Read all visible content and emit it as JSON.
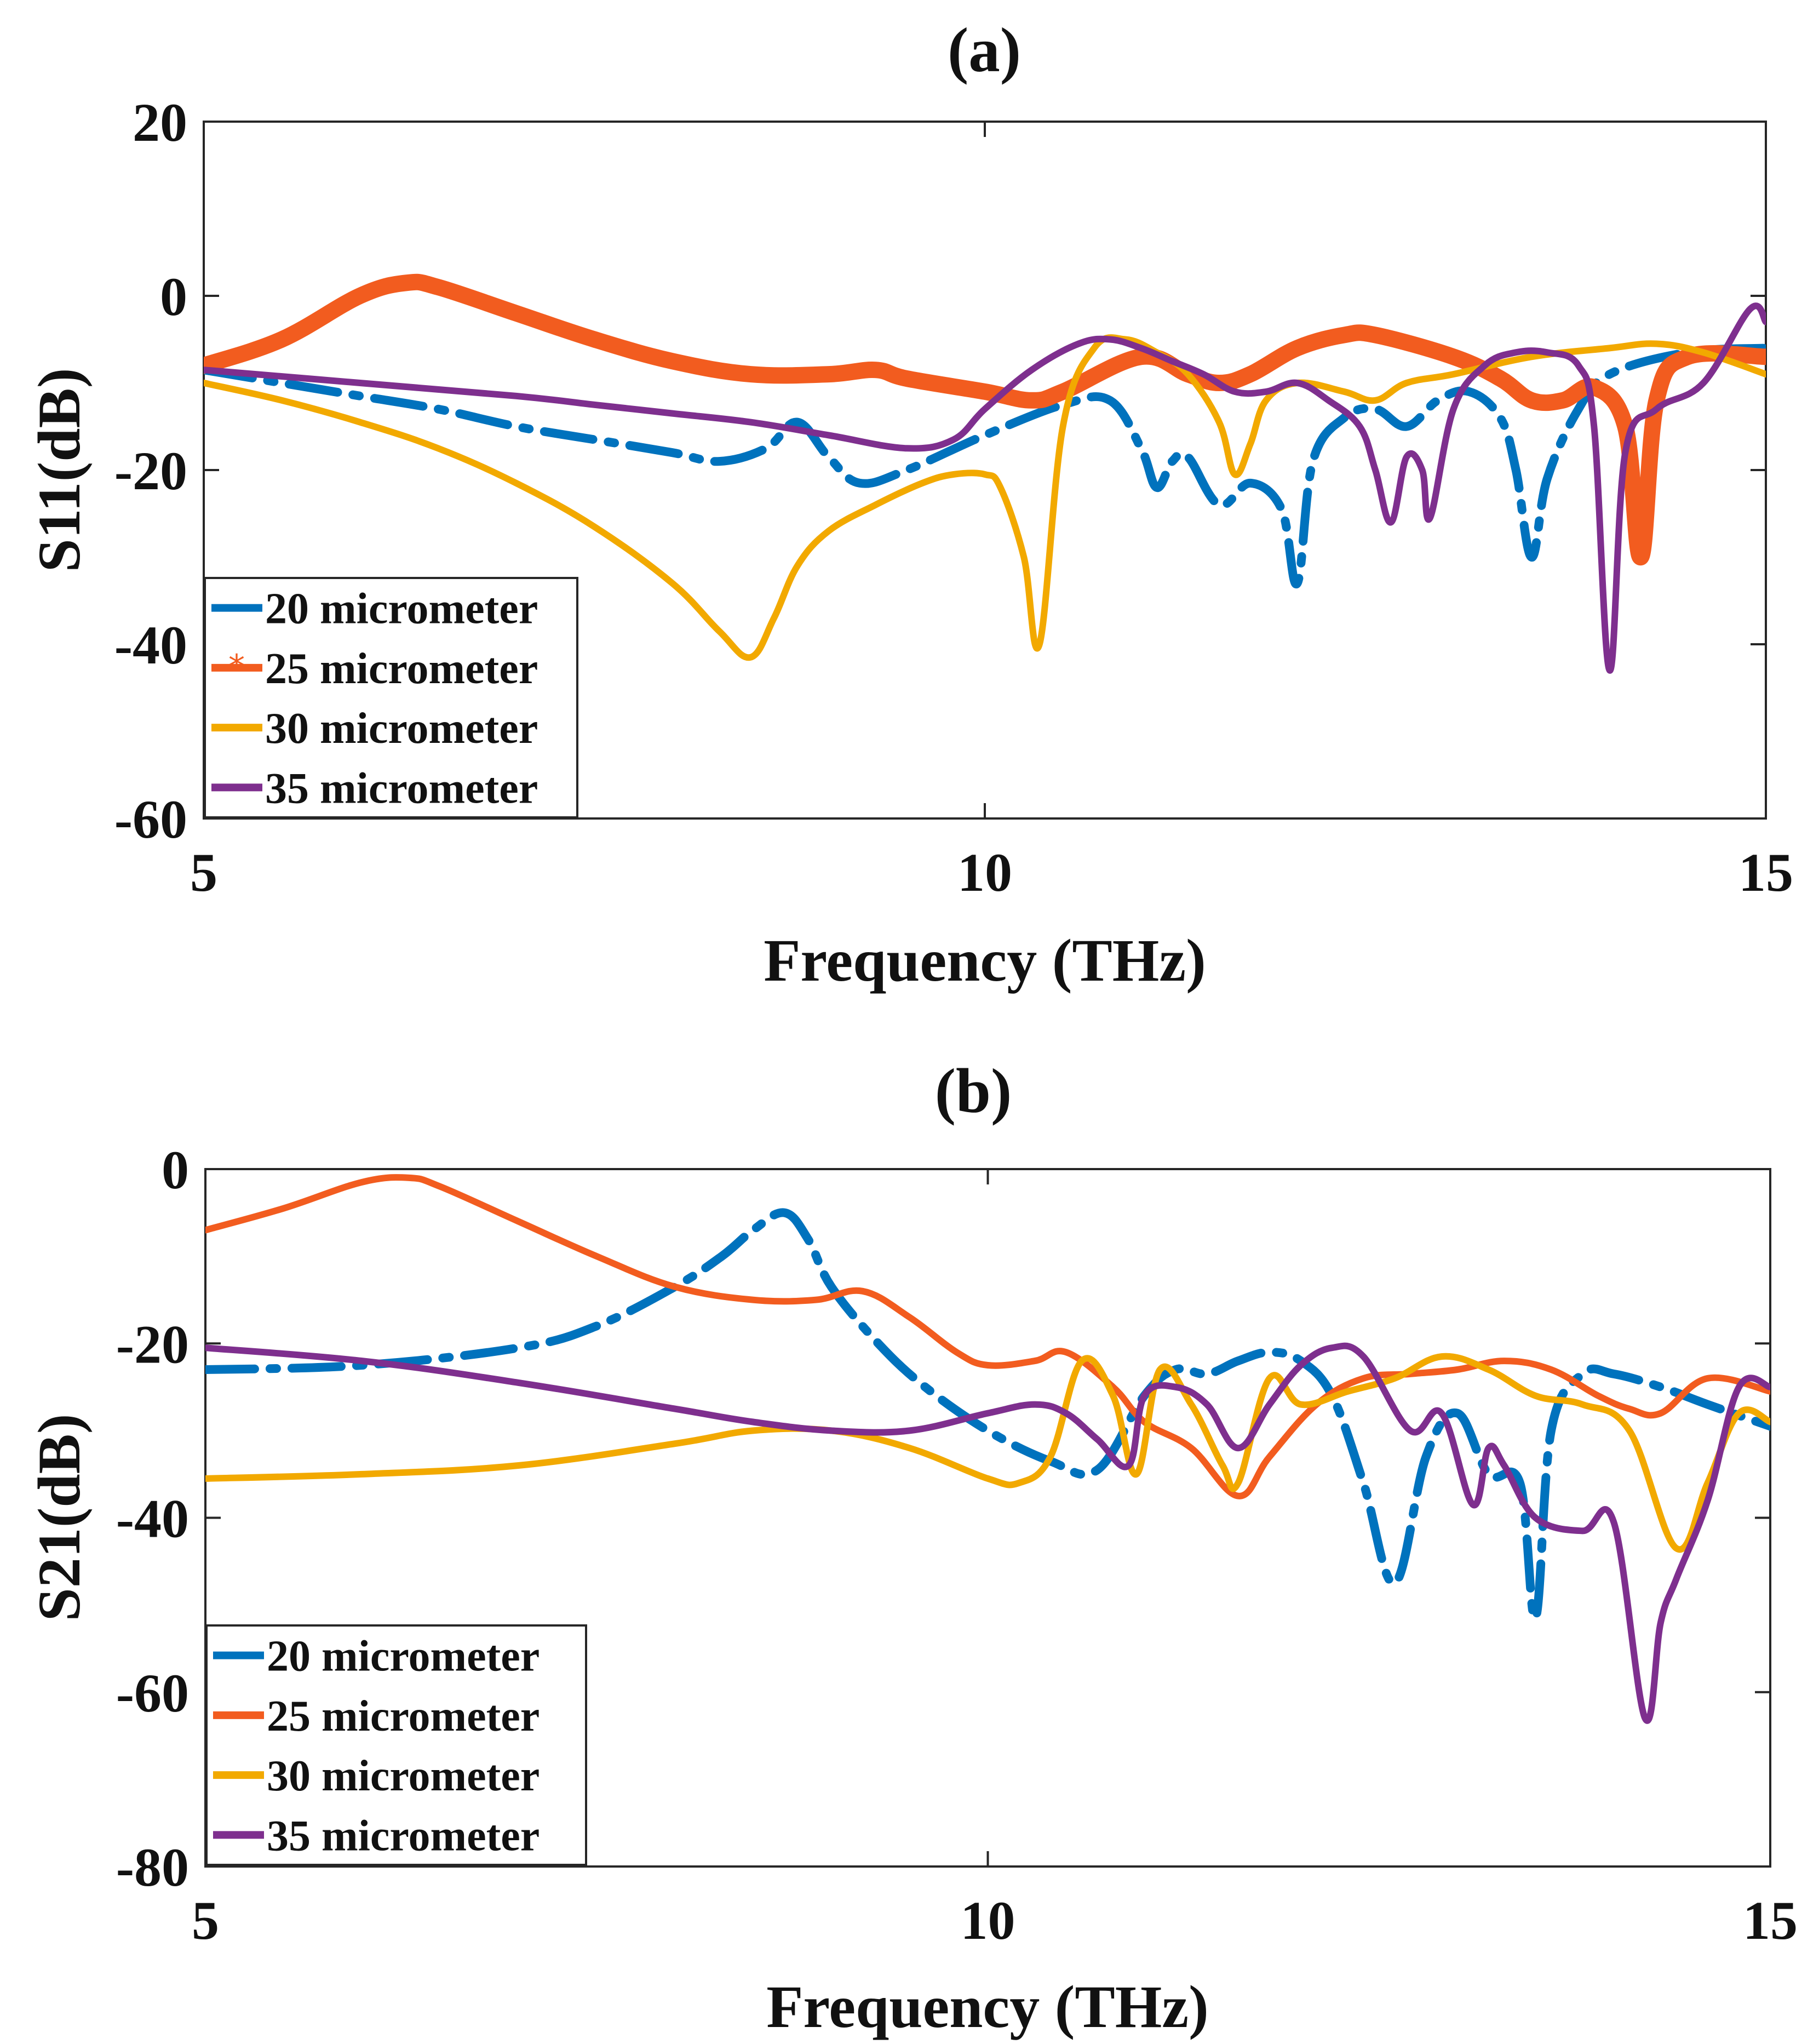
{
  "chart_data": [
    {
      "panel": "a",
      "type": "line",
      "title": "(a)",
      "xlabel": "Frequency (THz)",
      "ylabel": "S11(dB)",
      "xlim": [
        5,
        15
      ],
      "ylim": [
        -60,
        20
      ],
      "xticks": [
        5,
        10,
        15
      ],
      "yticks": [
        20,
        0,
        -20,
        -40,
        -60
      ],
      "legend_position": "bottom-left",
      "series": [
        {
          "name": "20 micrometer",
          "color": "#0072BD",
          "style": "dashdot",
          "x": [
            5,
            5.5,
            6,
            6.5,
            7,
            7.5,
            8,
            8.3,
            8.6,
            8.8,
            9.0,
            9.2,
            9.5,
            10,
            10.5,
            10.8,
            11.0,
            11.1,
            11.2,
            11.3,
            11.5,
            11.7,
            11.9,
            12.0,
            12.1,
            12.3,
            12.5,
            12.7,
            12.9,
            13.1,
            13.3,
            13.4,
            13.5,
            13.6,
            13.8,
            14.0,
            14.5,
            15
          ],
          "values": [
            -8.5,
            -10,
            -11.5,
            -13,
            -15,
            -16.5,
            -18,
            -19,
            -17.5,
            -14.5,
            -18.5,
            -21.5,
            -20,
            -16,
            -12.5,
            -12.0,
            -17.5,
            -22,
            -19,
            -18.5,
            -24,
            -21.5,
            -24.5,
            -33,
            -19,
            -14,
            -13,
            -15,
            -12,
            -11,
            -14,
            -20,
            -30,
            -21,
            -13,
            -9,
            -6.5,
            -6
          ]
        },
        {
          "name": "25 micrometer",
          "color": "#F25C1F",
          "style": "solid-marker",
          "x": [
            5,
            5.5,
            6,
            6.3,
            6.5,
            7,
            7.5,
            8,
            8.5,
            9,
            9.3,
            9.5,
            10,
            10.3,
            10.5,
            11,
            11.3,
            11.5,
            11.7,
            12,
            12.3,
            12.5,
            13,
            13.3,
            13.5,
            13.7,
            13.9,
            14.1,
            14.2,
            14.3,
            14.5,
            15
          ],
          "values": [
            -8,
            -5,
            0,
            1.5,
            1,
            -2,
            -5,
            -7.5,
            -9,
            -9,
            -8.5,
            -9.5,
            -11,
            -12,
            -11,
            -7,
            -9,
            -10,
            -9,
            -6,
            -4.5,
            -4.5,
            -7,
            -9.5,
            -12,
            -12,
            -10.5,
            -15,
            -30,
            -12,
            -7,
            -7
          ]
        },
        {
          "name": "30 micrometer",
          "color": "#F2A900",
          "style": "solid",
          "x": [
            5,
            5.5,
            6,
            6.5,
            7,
            7.5,
            8,
            8.3,
            8.5,
            8.65,
            8.8,
            9.0,
            9.3,
            9.6,
            9.8,
            10.0,
            10.1,
            10.25,
            10.35,
            10.5,
            10.7,
            10.9,
            11.1,
            11.3,
            11.5,
            11.6,
            11.7,
            11.8,
            12.0,
            12.3,
            12.5,
            12.7,
            13,
            13.5,
            14,
            14.3,
            14.6,
            15
          ],
          "values": [
            -10,
            -12,
            -14.5,
            -17.5,
            -21.5,
            -26.5,
            -33,
            -38.5,
            -41.5,
            -37,
            -31,
            -27,
            -24,
            -21.5,
            -20.5,
            -20.5,
            -22,
            -30,
            -40,
            -15,
            -6,
            -5,
            -6.5,
            -9,
            -14.5,
            -20.5,
            -17,
            -12,
            -10,
            -11,
            -12,
            -10,
            -9,
            -7,
            -6,
            -5.5,
            -6.5,
            -9
          ]
        },
        {
          "name": "35 micrometer",
          "color": "#7E2F8E",
          "style": "solid",
          "x": [
            5,
            6,
            7,
            7.5,
            8,
            8.5,
            9,
            9.5,
            9.8,
            10,
            10.3,
            10.6,
            10.8,
            11,
            11.2,
            11.4,
            11.6,
            11.8,
            12.0,
            12.2,
            12.4,
            12.5,
            12.6,
            12.7,
            12.8,
            12.85,
            13,
            13.2,
            13.4,
            13.6,
            13.8,
            13.9,
            14.0,
            14.1,
            14.3,
            14.6,
            14.9,
            15
          ],
          "values": [
            -8.5,
            -10,
            -11.5,
            -12.5,
            -13.5,
            -14.5,
            -16,
            -17.5,
            -16.5,
            -13,
            -8.5,
            -5.5,
            -5,
            -6,
            -7.5,
            -9,
            -11,
            -11,
            -10,
            -12,
            -15,
            -20,
            -26,
            -18.5,
            -20,
            -25.5,
            -13,
            -8,
            -6.5,
            -6.5,
            -8,
            -15,
            -43,
            -18,
            -13,
            -10,
            -1.5,
            -3
          ]
        }
      ]
    },
    {
      "panel": "b",
      "type": "line",
      "title": "(b)",
      "xlabel": "Frequency (THz)",
      "ylabel": "S21(dB)",
      "xlim": [
        5,
        15
      ],
      "ylim": [
        -80,
        0
      ],
      "xticks": [
        5,
        10,
        15
      ],
      "yticks": [
        0,
        -20,
        -40,
        -60,
        -80
      ],
      "legend_position": "bottom-left",
      "series": [
        {
          "name": "20 micrometer",
          "color": "#0072BD",
          "style": "dashdot",
          "x": [
            5,
            6,
            7,
            7.5,
            8,
            8.3,
            8.5,
            8.7,
            8.85,
            9.0,
            9.3,
            9.6,
            10,
            10.4,
            10.7,
            11.0,
            11.2,
            11.4,
            11.6,
            11.8,
            12.0,
            12.2,
            12.4,
            12.6,
            12.8,
            13.0,
            13.2,
            13.4,
            13.5,
            13.6,
            13.8,
            14.0,
            14.3,
            14.6,
            15
          ],
          "values": [
            -23,
            -22.5,
            -20.5,
            -18,
            -13.5,
            -10,
            -7,
            -5,
            -8,
            -13.5,
            -20,
            -25,
            -30,
            -33.5,
            -34.5,
            -26,
            -23,
            -23.5,
            -22,
            -21,
            -22,
            -26,
            -36,
            -47.5,
            -33,
            -28,
            -35,
            -36,
            -51.5,
            -30,
            -23.5,
            -23.5,
            -25,
            -27,
            -29.5
          ]
        },
        {
          "name": "25 micrometer",
          "color": "#F25C1F",
          "style": "solid",
          "x": [
            5,
            5.5,
            6,
            6.3,
            6.5,
            7,
            7.5,
            8,
            8.5,
            8.9,
            9.2,
            9.5,
            9.8,
            10,
            10.3,
            10.5,
            10.8,
            11.0,
            11.3,
            11.6,
            11.8,
            12.1,
            12.4,
            12.7,
            13,
            13.3,
            13.6,
            13.9,
            14.1,
            14.3,
            14.6,
            15
          ],
          "values": [
            -7,
            -4.5,
            -1.5,
            -1,
            -2,
            -6,
            -10,
            -13.5,
            -15,
            -15,
            -14,
            -17,
            -21,
            -22.5,
            -22,
            -21,
            -25,
            -29,
            -32,
            -37.5,
            -33,
            -27,
            -24,
            -23.5,
            -23,
            -22,
            -23,
            -26,
            -27.5,
            -28,
            -24,
            -25.5
          ]
        },
        {
          "name": "30 micrometer",
          "color": "#F2A900",
          "style": "solid",
          "x": [
            5,
            6,
            7,
            8,
            8.5,
            9,
            9.5,
            10,
            10.2,
            10.4,
            10.6,
            10.8,
            10.95,
            11.1,
            11.3,
            11.5,
            11.6,
            11.8,
            12.0,
            12.3,
            12.6,
            12.9,
            13.2,
            13.5,
            13.8,
            14.1,
            14.4,
            14.6,
            14.8,
            15
          ],
          "values": [
            -35.5,
            -35,
            -34,
            -31.5,
            -30,
            -30,
            -32,
            -35.5,
            -36,
            -33,
            -22,
            -26,
            -35,
            -23,
            -27,
            -34,
            -36,
            -24,
            -27,
            -25.5,
            -24,
            -21.5,
            -23,
            -26,
            -27,
            -30,
            -43.5,
            -36,
            -28,
            -29
          ]
        },
        {
          "name": "35 micrometer",
          "color": "#7E2F8E",
          "style": "solid",
          "x": [
            5,
            6,
            7,
            8,
            8.5,
            9,
            9.5,
            10,
            10.3,
            10.5,
            10.7,
            10.9,
            11.0,
            11.2,
            11.4,
            11.6,
            11.8,
            12.0,
            12.2,
            12.4,
            12.7,
            12.9,
            13.1,
            13.2,
            13.3,
            13.5,
            13.8,
            14.0,
            14.2,
            14.3,
            14.4,
            14.6,
            14.8,
            15
          ],
          "values": [
            -20.5,
            -22,
            -24.5,
            -27.5,
            -29,
            -30,
            -30,
            -28,
            -27,
            -28,
            -31,
            -34,
            -26,
            -25,
            -27,
            -32,
            -27,
            -22.5,
            -20.5,
            -21.5,
            -30,
            -28,
            -38.5,
            -32,
            -34,
            -40,
            -41.5,
            -40.5,
            -63,
            -52,
            -47,
            -38,
            -25,
            -25
          ]
        }
      ]
    }
  ]
}
